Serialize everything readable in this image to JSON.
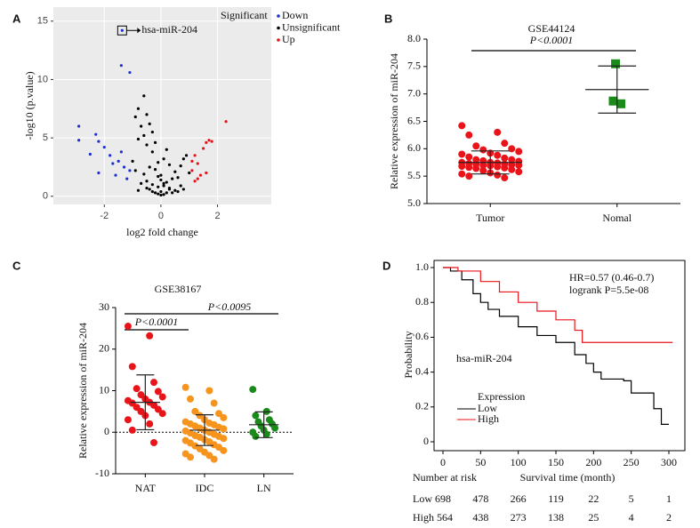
{
  "chart_data": [
    {
      "type": "scatter",
      "label": "A",
      "xlabel": "log2 fold change",
      "ylabel": "-log10 (p.value)",
      "xlim": [
        -3.8,
        3.9
      ],
      "ylim": [
        -0.7,
        16.2
      ],
      "xticks": [
        -2,
        0,
        2
      ],
      "yticks": [
        0,
        5,
        10,
        15
      ],
      "grid": true,
      "legend_title": "Significant",
      "annotation": {
        "text": "hsa-miR-204",
        "x": -1.37,
        "y": 14.2
      },
      "series": [
        {
          "name": "Down",
          "color": "#1f2fd0",
          "x": [
            -2.9,
            -2.9,
            -2.3,
            -2.2,
            -2.5,
            -2.0,
            -1.8,
            -1.4,
            -1.1,
            -1.37,
            -1.5,
            -1.3,
            -2.2,
            -1.6,
            -1.2,
            -1.4,
            -1.1,
            -1.7
          ],
          "y": [
            6.0,
            4.8,
            5.3,
            4.7,
            3.6,
            4.2,
            3.5,
            11.2,
            10.6,
            14.2,
            3.0,
            2.5,
            2.0,
            1.8,
            1.5,
            3.8,
            2.2,
            2.8
          ]
        },
        {
          "name": "Unsignificant",
          "color": "#000000",
          "x": [
            -0.6,
            -0.8,
            -0.5,
            -0.9,
            -0.4,
            -0.7,
            -0.3,
            -0.6,
            -0.8,
            -0.2,
            -0.5,
            0.2,
            0.8,
            0.9,
            0.7,
            1.0,
            -1.0,
            -0.9,
            -0.3,
            0.1,
            -0.1,
            0.3,
            -0.4,
            0.5,
            -0.6,
            0.6,
            -0.2,
            0.0,
            0.4,
            -0.5,
            0.2,
            -0.3,
            0.1,
            -0.1,
            0.3,
            -0.7,
            0.7,
            -0.4,
            0.5,
            0.0,
            -0.2,
            0.2,
            -0.1,
            0.1,
            0.0,
            -0.3,
            0.3,
            -0.5,
            0.4,
            0.6,
            -0.8,
            0.8,
            0.0,
            -0.1,
            0.1
          ],
          "y": [
            8.6,
            7.5,
            7.0,
            6.8,
            6.2,
            6.0,
            5.5,
            5.2,
            4.9,
            4.6,
            4.4,
            4.0,
            3.2,
            3.5,
            2.6,
            2.0,
            3.0,
            2.2,
            3.8,
            3.2,
            2.9,
            2.7,
            2.5,
            2.1,
            1.9,
            1.6,
            2.3,
            1.8,
            1.5,
            1.3,
            1.2,
            1.0,
            0.9,
            0.8,
            0.7,
            1.1,
            0.9,
            0.6,
            0.5,
            0.4,
            0.3,
            0.3,
            0.2,
            0.15,
            0.1,
            0.4,
            0.6,
            0.7,
            0.3,
            0.4,
            0.5,
            0.6,
            1.4,
            1.7,
            1.1
          ]
        },
        {
          "name": "Up",
          "color": "#e8141a",
          "x": [
            2.3,
            1.7,
            1.6,
            1.8,
            1.5,
            1.2,
            1.3,
            1.1,
            1.4,
            1.2,
            1.6,
            1.1,
            1.3
          ],
          "y": [
            6.4,
            4.8,
            4.6,
            4.7,
            4.1,
            3.5,
            2.8,
            2.2,
            1.8,
            1.3,
            2.0,
            3.0,
            1.5
          ]
        }
      ]
    },
    {
      "type": "dot",
      "label": "B",
      "title": "GSE44124",
      "ylabel": "Relative expression of miR-204",
      "annotations": [
        "P<0.0001"
      ],
      "ylim": [
        5.0,
        8.0
      ],
      "yticks": [
        {
          "value": 5.0,
          "label": "5.0"
        },
        {
          "value": 5.5,
          "label": "5.5"
        },
        {
          "value": 6.0,
          "label": "6.0"
        },
        {
          "value": 6.5,
          "label": "6.5"
        },
        {
          "value": 7.0,
          "label": "7.0"
        },
        {
          "value": 7.5,
          "label": "7.5"
        },
        {
          "value": 8.0,
          "label": "8.0"
        }
      ],
      "categories": [
        "Tumor",
        "Nomal"
      ],
      "colors": [
        "#e8141a",
        "#1a8a1a"
      ],
      "markers": [
        "circle",
        "square"
      ],
      "points": [
        [
          6.42,
          6.3,
          6.25,
          6.1,
          6.05,
          6.0,
          5.98,
          5.95,
          5.92,
          5.9,
          5.88,
          5.85,
          5.83,
          5.8,
          5.8,
          5.78,
          5.77,
          5.75,
          5.75,
          5.74,
          5.73,
          5.72,
          5.72,
          5.71,
          5.7,
          5.7,
          5.69,
          5.68,
          5.67,
          5.66,
          5.65,
          5.64,
          5.62,
          5.6,
          5.58,
          5.56,
          5.54,
          5.52,
          5.5,
          5.47
        ],
        [
          7.55,
          6.82,
          6.87
        ]
      ],
      "means": [
        5.75,
        7.08
      ],
      "sd": [
        0.21,
        0.43
      ]
    },
    {
      "type": "dot",
      "label": "C",
      "title": "GSE38167",
      "ylabel": "Relative expression of miR-204",
      "annotations": [
        "P<0.0001",
        "P<0.0095"
      ],
      "ylim": [
        -10,
        30
      ],
      "yticks": [
        -10,
        0,
        10,
        20,
        30
      ],
      "hline": 0,
      "categories": [
        "NAT",
        "IDC",
        "LN"
      ],
      "colors": [
        "#e8141a",
        "#f7941d",
        "#1a8a1a"
      ],
      "markers": [
        "circle",
        "circle",
        "circle"
      ],
      "points": [
        [
          25.5,
          23.2,
          15.8,
          12.0,
          10.5,
          9.8,
          9.0,
          8.5,
          8.0,
          7.6,
          7.2,
          7.0,
          6.5,
          6.0,
          5.5,
          5.0,
          4.5,
          4.0,
          3.0,
          2.0,
          0.5,
          -2.5
        ],
        [
          10.8,
          10.0,
          8.0,
          7.0,
          5.0,
          4.5,
          4.0,
          3.5,
          3.0,
          2.5,
          2.2,
          2.0,
          1.8,
          1.5,
          1.2,
          1.0,
          0.8,
          0.5,
          0.3,
          0.0,
          -0.2,
          -0.5,
          -0.8,
          -1.0,
          -1.2,
          -1.5,
          -1.8,
          -2.0,
          -2.3,
          -2.6,
          -3.0,
          -3.3,
          -3.6,
          -4.0,
          -4.4,
          -4.8,
          -5.2,
          -5.6,
          -6.0,
          -6.5
        ],
        [
          10.3,
          5.0,
          4.0,
          3.0,
          2.5,
          2.0,
          1.5,
          1.0,
          0.5,
          0.0,
          -0.5,
          -1.0
        ]
      ],
      "means": [
        7.2,
        0.5,
        1.8
      ],
      "sd": [
        6.6,
        3.7,
        3.1
      ]
    },
    {
      "type": "km",
      "label": "D",
      "xlabel": "Survival time (month)",
      "ylabel": "Probability",
      "annotations": [
        "HR=0.57 (0.46-0.7)",
        "logrank P=5.5e-08",
        "hsa-miR-204"
      ],
      "xlim": [
        0,
        300
      ],
      "ylim": [
        0,
        1
      ],
      "xticks": [
        0,
        50,
        100,
        150,
        200,
        250,
        300
      ],
      "yticks": [
        0,
        0.2,
        0.4,
        0.6,
        0.8,
        {
          "value": 1.0,
          "label": "1.0"
        }
      ],
      "legend_title": "Expression",
      "series": [
        {
          "name": "Low",
          "color": "#000000",
          "x": [
            0,
            10,
            25,
            40,
            50,
            60,
            75,
            100,
            125,
            150,
            175,
            190,
            200,
            210,
            240,
            250,
            280,
            290,
            300
          ],
          "y": [
            1,
            0.98,
            0.93,
            0.85,
            0.8,
            0.76,
            0.72,
            0.66,
            0.61,
            0.57,
            0.5,
            0.45,
            0.4,
            0.36,
            0.35,
            0.28,
            0.19,
            0.1,
            0.1
          ]
        },
        {
          "name": "High",
          "color": "#e8141a",
          "x": [
            0,
            20,
            50,
            75,
            100,
            125,
            150,
            175,
            185,
            305
          ],
          "y": [
            1,
            0.98,
            0.92,
            0.86,
            0.8,
            0.75,
            0.7,
            0.64,
            0.57,
            0.57
          ]
        }
      ],
      "risk_table": {
        "title": "Number at risk",
        "rows": [
          {
            "label": "Low 698",
            "color": "#000000",
            "counts": [
              478,
              266,
              119,
              22,
              5,
              1
            ]
          },
          {
            "label": "High 564",
            "color": "#d4147a",
            "counts": [
              438,
              273,
              138,
              25,
              4,
              2
            ]
          }
        ]
      }
    }
  ]
}
